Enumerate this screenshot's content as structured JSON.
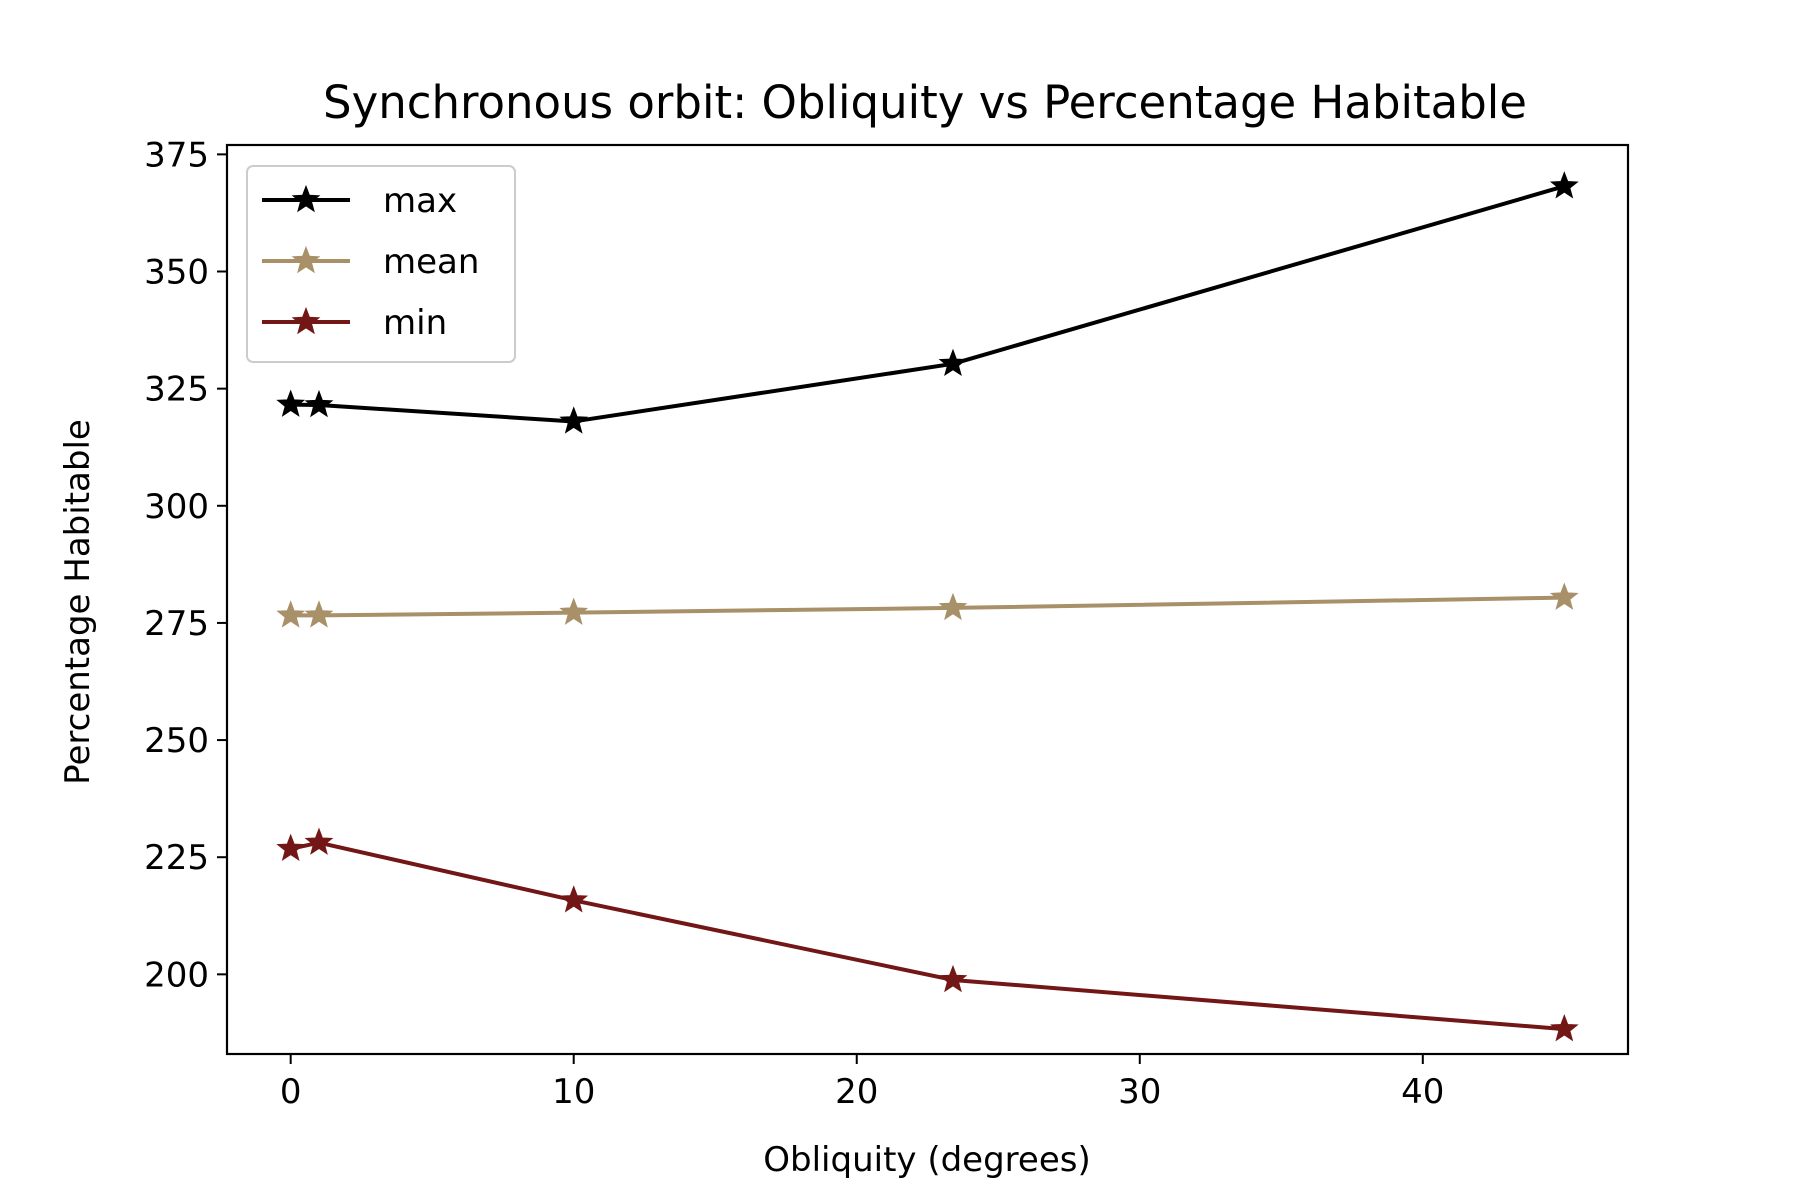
{
  "chart_data": {
    "type": "line",
    "title": "Synchronous orbit: Obliquity vs Percentage Habitable",
    "xlabel": "Obliquity (degrees)",
    "ylabel": "Percentage Habitable",
    "x": [
      0,
      1,
      10,
      23.4,
      45
    ],
    "xlim": [
      -2.25,
      47.25
    ],
    "ylim": [
      183,
      377
    ],
    "xticks": [
      0,
      10,
      20,
      30,
      40
    ],
    "yticks": [
      200,
      225,
      250,
      275,
      300,
      325,
      350,
      375
    ],
    "marker": "star",
    "legend_position": "upper left",
    "grid": false,
    "series": [
      {
        "name": "max",
        "color": "#000000",
        "values": [
          321.6,
          321.5,
          318.0,
          330.3,
          368.2
        ]
      },
      {
        "name": "mean",
        "color": "#a89069",
        "values": [
          276.6,
          276.6,
          277.2,
          278.2,
          280.4
        ]
      },
      {
        "name": "min",
        "color": "#731616",
        "values": [
          226.8,
          228.1,
          215.8,
          198.8,
          188.3
        ]
      }
    ]
  }
}
